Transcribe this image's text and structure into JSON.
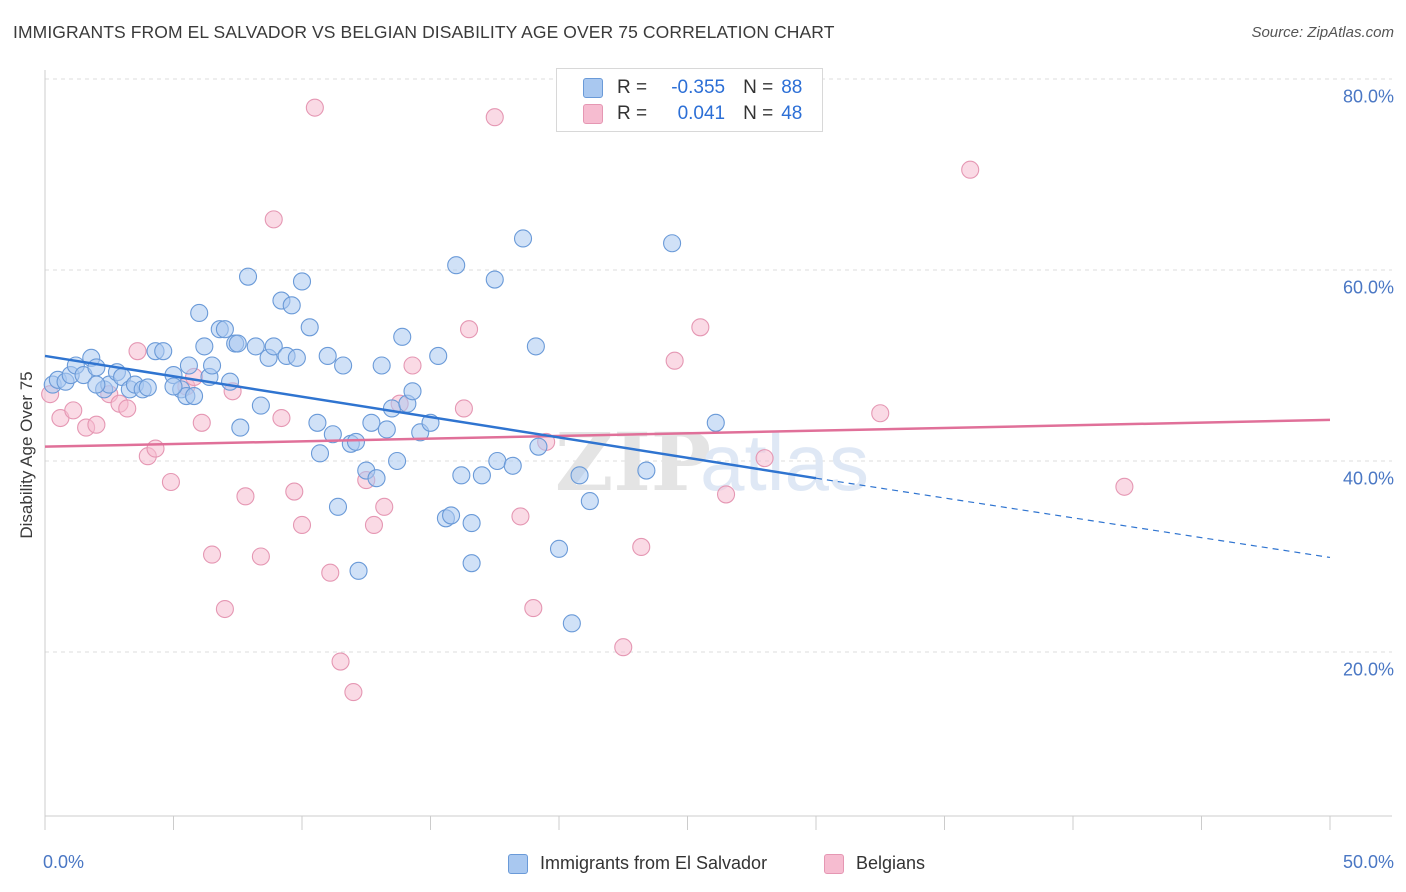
{
  "title": "IMMIGRANTS FROM EL SALVADOR VS BELGIAN DISABILITY AGE OVER 75 CORRELATION CHART",
  "source": "Source: ZipAtlas.com",
  "watermark": {
    "zip": "ZIP",
    "atlas": "atlas"
  },
  "legend": {
    "rows": [
      {
        "r_label": "R =",
        "r_value": "-0.355",
        "n_label": "N =",
        "n_value": "88"
      },
      {
        "r_label": "R =",
        "r_value": "0.041",
        "n_label": "N =",
        "n_value": "48"
      }
    ]
  },
  "bottom_legend": [
    "Immigrants from El Salvador",
    "Belgians"
  ],
  "colors": {
    "blue_fill": "#a9c8f0",
    "blue_stroke": "#6a9ad8",
    "blue_line": "#2f74d0",
    "pink_fill": "#f6bcd0",
    "pink_stroke": "#e597b3",
    "pink_line": "#e07099",
    "tick_text": "#4a77c4",
    "grid": "#dddddd"
  },
  "chart_data": {
    "type": "scatter",
    "ylabel": "Disability Age Over 75",
    "xlabel": "",
    "xlim": [
      0,
      50
    ],
    "ylim": [
      0,
      85
    ],
    "x_tick_labels": [
      "0.0%",
      "50.0%"
    ],
    "y_ticks": [
      {
        "value": 20,
        "label": "20.0%"
      },
      {
        "value": 40,
        "label": "40.0%"
      },
      {
        "value": 60,
        "label": "60.0%"
      },
      {
        "value": 80,
        "label": "80.0%"
      }
    ],
    "grid": true,
    "legend_position": "top-center",
    "series": [
      {
        "name": "Immigrants from El Salvador",
        "trend": {
          "x0": 0,
          "y0": 51.0,
          "x1": 30,
          "y1": 38.2,
          "dash_to_x": 50,
          "dash_to_y": 29.9
        },
        "points": [
          [
            0.3,
            48.0
          ],
          [
            0.5,
            48.5
          ],
          [
            0.8,
            48.3
          ],
          [
            1.0,
            49.0
          ],
          [
            1.2,
            50.0
          ],
          [
            1.5,
            49.0
          ],
          [
            1.8,
            50.8
          ],
          [
            2.0,
            49.8
          ],
          [
            2.3,
            47.5
          ],
          [
            2.5,
            48.0
          ],
          [
            2.8,
            49.3
          ],
          [
            3.0,
            48.8
          ],
          [
            3.3,
            47.5
          ],
          [
            3.5,
            48.0
          ],
          [
            3.8,
            47.5
          ],
          [
            4.0,
            47.7
          ],
          [
            4.3,
            51.5
          ],
          [
            4.6,
            51.5
          ],
          [
            5.0,
            49.0
          ],
          [
            5.3,
            47.5
          ],
          [
            5.5,
            46.8
          ],
          [
            5.6,
            50.0
          ],
          [
            5.8,
            46.8
          ],
          [
            6.0,
            55.5
          ],
          [
            6.2,
            52.0
          ],
          [
            6.4,
            48.8
          ],
          [
            6.5,
            50.0
          ],
          [
            6.8,
            53.8
          ],
          [
            7.0,
            53.8
          ],
          [
            7.2,
            48.3
          ],
          [
            7.4,
            52.3
          ],
          [
            7.6,
            43.5
          ],
          [
            7.9,
            59.3
          ],
          [
            8.2,
            52.0
          ],
          [
            8.4,
            45.8
          ],
          [
            8.7,
            50.8
          ],
          [
            8.9,
            52.0
          ],
          [
            9.2,
            56.8
          ],
          [
            9.4,
            51.0
          ],
          [
            9.6,
            56.3
          ],
          [
            9.8,
            50.8
          ],
          [
            10.0,
            58.8
          ],
          [
            10.3,
            54.0
          ],
          [
            10.6,
            44.0
          ],
          [
            10.7,
            40.8
          ],
          [
            11.0,
            51.0
          ],
          [
            11.2,
            42.8
          ],
          [
            11.4,
            35.2
          ],
          [
            11.6,
            50.0
          ],
          [
            11.9,
            41.8
          ],
          [
            12.1,
            42.0
          ],
          [
            12.2,
            28.5
          ],
          [
            12.5,
            39.0
          ],
          [
            12.7,
            44.0
          ],
          [
            12.9,
            38.2
          ],
          [
            13.1,
            50.0
          ],
          [
            13.3,
            43.3
          ],
          [
            13.5,
            45.5
          ],
          [
            13.7,
            40.0
          ],
          [
            13.9,
            53.0
          ],
          [
            14.1,
            46.0
          ],
          [
            14.3,
            47.3
          ],
          [
            14.6,
            43.0
          ],
          [
            15.0,
            44.0
          ],
          [
            15.3,
            51.0
          ],
          [
            15.6,
            34.0
          ],
          [
            16.0,
            60.5
          ],
          [
            16.2,
            38.5
          ],
          [
            16.6,
            33.5
          ],
          [
            16.6,
            29.3
          ],
          [
            17.0,
            38.5
          ],
          [
            17.5,
            59.0
          ],
          [
            17.6,
            40.0
          ],
          [
            18.2,
            39.5
          ],
          [
            18.6,
            63.3
          ],
          [
            19.1,
            52.0
          ],
          [
            19.2,
            41.5
          ],
          [
            20.0,
            30.8
          ],
          [
            20.5,
            23.0
          ],
          [
            20.8,
            38.5
          ],
          [
            21.2,
            35.8
          ],
          [
            23.4,
            39.0
          ],
          [
            24.4,
            62.8
          ],
          [
            26.1,
            44.0
          ],
          [
            15.8,
            34.3
          ],
          [
            7.5,
            52.3
          ],
          [
            5.0,
            47.8
          ],
          [
            2.0,
            48.0
          ]
        ]
      },
      {
        "name": "Belgians",
        "trend": {
          "x0": 0,
          "y0": 41.5,
          "x1": 50,
          "y1": 44.3
        },
        "points": [
          [
            0.2,
            47.0
          ],
          [
            0.6,
            44.5
          ],
          [
            1.1,
            45.3
          ],
          [
            1.6,
            43.5
          ],
          [
            2.0,
            43.8
          ],
          [
            2.5,
            47.0
          ],
          [
            2.9,
            46.0
          ],
          [
            3.2,
            45.5
          ],
          [
            3.6,
            51.5
          ],
          [
            4.0,
            40.5
          ],
          [
            4.3,
            41.3
          ],
          [
            4.9,
            37.8
          ],
          [
            5.5,
            47.8
          ],
          [
            5.8,
            48.8
          ],
          [
            6.1,
            44.0
          ],
          [
            6.5,
            30.2
          ],
          [
            7.0,
            24.5
          ],
          [
            7.3,
            47.3
          ],
          [
            7.8,
            36.3
          ],
          [
            8.4,
            30.0
          ],
          [
            8.9,
            65.3
          ],
          [
            9.2,
            44.5
          ],
          [
            9.7,
            36.8
          ],
          [
            10.0,
            33.3
          ],
          [
            10.5,
            77.0
          ],
          [
            11.1,
            28.3
          ],
          [
            11.5,
            19.0
          ],
          [
            12.0,
            15.8
          ],
          [
            12.5,
            38.0
          ],
          [
            12.8,
            33.3
          ],
          [
            13.2,
            35.2
          ],
          [
            13.8,
            46.0
          ],
          [
            14.3,
            50.0
          ],
          [
            16.3,
            45.5
          ],
          [
            16.5,
            53.8
          ],
          [
            17.5,
            76.0
          ],
          [
            18.5,
            34.2
          ],
          [
            19.0,
            24.6
          ],
          [
            19.5,
            42.0
          ],
          [
            22.5,
            20.5
          ],
          [
            23.2,
            31.0
          ],
          [
            24.5,
            50.5
          ],
          [
            25.5,
            54.0
          ],
          [
            26.5,
            36.5
          ],
          [
            28.0,
            40.3
          ],
          [
            32.5,
            45.0
          ],
          [
            36.0,
            70.5
          ],
          [
            42.0,
            37.3
          ]
        ]
      }
    ]
  }
}
